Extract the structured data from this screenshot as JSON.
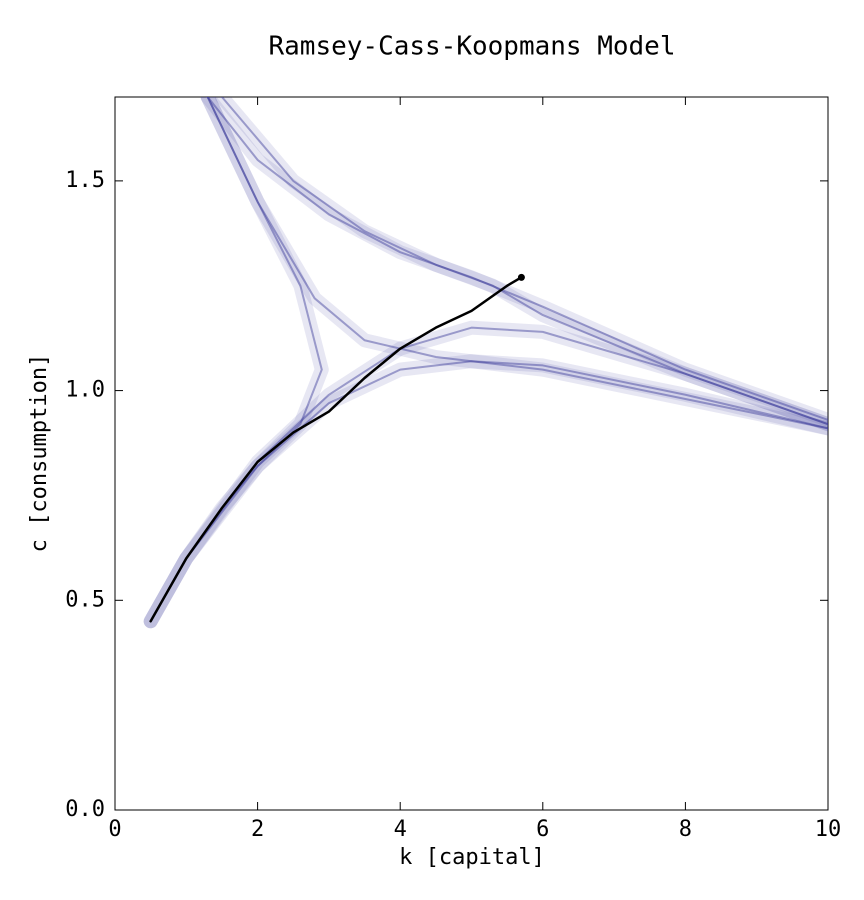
{
  "chart_data": {
    "type": "line",
    "title": "Ramsey-Cass-Koopmans Model",
    "xlabel": "k [capital]",
    "ylabel": "c [consumption]",
    "xlim": [
      0,
      10
    ],
    "ylim": [
      0,
      1.7
    ],
    "xticks": [
      0,
      2,
      4,
      6,
      8,
      10
    ],
    "yticks": [
      {
        "value": 0,
        "label": "0.0"
      },
      0.5,
      {
        "value": 1,
        "label": "1.0"
      },
      1.5
    ],
    "trajectory_color": "#3a3a9a",
    "trajectories": [
      {
        "x": [
          0.5,
          1,
          2,
          3,
          4,
          5,
          6,
          8,
          10
        ],
        "values": [
          0.45,
          0.6,
          0.82,
          0.97,
          1.05,
          1.07,
          1.06,
          0.99,
          0.91
        ]
      },
      {
        "x": [
          0.5,
          1,
          2,
          3,
          4,
          5,
          6,
          8,
          10
        ],
        "values": [
          0.45,
          0.6,
          0.83,
          0.99,
          1.1,
          1.15,
          1.14,
          1.04,
          0.92
        ]
      },
      {
        "x": [
          1.3,
          2,
          3,
          4,
          5,
          6,
          8,
          10
        ],
        "values": [
          1.7,
          1.55,
          1.42,
          1.33,
          1.27,
          1.2,
          1.05,
          0.93
        ]
      },
      {
        "x": [
          1.3,
          2,
          2.6,
          2.9,
          2.6,
          2,
          1.5,
          1,
          0.5
        ],
        "values": [
          1.7,
          1.45,
          1.25,
          1.05,
          0.92,
          0.82,
          0.72,
          0.6,
          0.45
        ]
      },
      {
        "x": [
          1.3,
          2,
          2.8,
          3.5,
          4.5,
          6,
          8,
          10
        ],
        "values": [
          1.7,
          1.45,
          1.22,
          1.12,
          1.08,
          1.05,
          0.98,
          0.91
        ]
      },
      {
        "x": [
          1.5,
          2.5,
          3.5,
          4.5,
          5.3,
          6,
          8,
          10
        ],
        "values": [
          1.7,
          1.5,
          1.38,
          1.3,
          1.25,
          1.18,
          1.04,
          0.92
        ]
      }
    ],
    "path": {
      "color": "#000000",
      "x": [
        0.5,
        1,
        1.5,
        2,
        2.5,
        3,
        3.5,
        4,
        4.5,
        5,
        5.5,
        5.7
      ],
      "values": [
        0.45,
        0.6,
        0.72,
        0.83,
        0.9,
        0.95,
        1.03,
        1.1,
        1.15,
        1.19,
        1.25,
        1.27
      ]
    }
  }
}
